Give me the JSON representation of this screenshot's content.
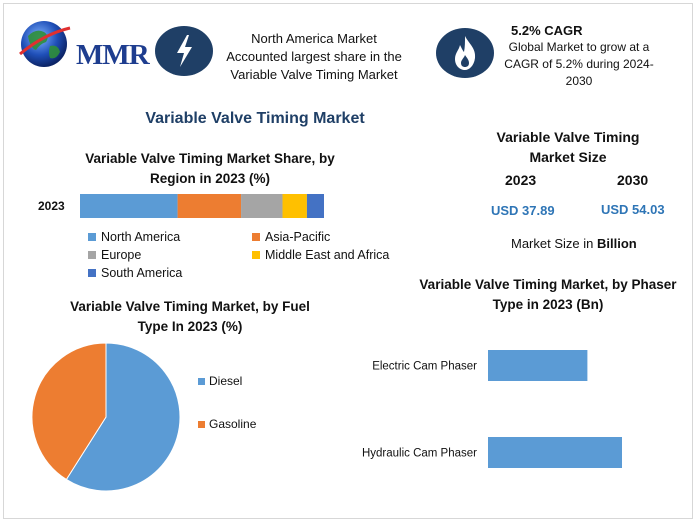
{
  "header": {
    "logo_text": "MMR",
    "highlight_text": [
      "North America Market",
      "Accounted largest share in the",
      "Variable Valve Timing Market"
    ],
    "cagr_title": "5.2% CAGR",
    "cagr_desc": [
      "Global Market to grow at a",
      "CAGR of 5.2% during 2024-",
      "2030"
    ]
  },
  "main_title": "Variable Valve Timing Market",
  "market_size": {
    "title": [
      "Variable Valve Timing",
      "Market Size"
    ],
    "year1": "2023",
    "year2": "2030",
    "value1": "USD 37.89",
    "value2": "USD 54.03",
    "unit_prefix": "Market Size in ",
    "unit_bold": "Billion"
  },
  "chart_data": [
    {
      "type": "bar",
      "orientation": "horizontal-stacked",
      "title": [
        "Variable Valve Timing Market Share, by",
        "Region in 2023 (%)"
      ],
      "categories": [
        "2023"
      ],
      "series": [
        {
          "name": "North America",
          "values": [
            40
          ],
          "color": "#5b9bd5"
        },
        {
          "name": "Asia-Pacific",
          "values": [
            26
          ],
          "color": "#ed7d31"
        },
        {
          "name": "Europe",
          "values": [
            17
          ],
          "color": "#a5a5a5"
        },
        {
          "name": "Middle East and Africa",
          "values": [
            10
          ],
          "color": "#ffc000"
        },
        {
          "name": "South America",
          "values": [
            7
          ],
          "color": "#4472c4"
        }
      ],
      "legend": "bottom"
    },
    {
      "type": "pie",
      "title": [
        "Variable Valve Timing Market, by Fuel",
        "Type In 2023 (%)"
      ],
      "labels": [
        "Diesel",
        "Gasoline"
      ],
      "values": [
        59,
        41
      ],
      "colors": [
        "#5b9bd5",
        "#ed7d31"
      ],
      "legend": "right"
    },
    {
      "type": "bar",
      "orientation": "horizontal",
      "title": [
        "Variable Valve Timing Market, by Phaser",
        "Type in 2023 (Bn)"
      ],
      "categories": [
        "Electric Cam Phaser",
        "Hydraulic Cam Phaser"
      ],
      "values": [
        13.5,
        18.2
      ],
      "color": "#5b9bd5"
    }
  ],
  "colors": {
    "title_navy": "#1f3f66",
    "usd_blue": "#2e75b6",
    "icon_bg": "#1f3f66"
  },
  "icons": [
    "globe-logo-icon",
    "lightning-icon",
    "flame-icon"
  ]
}
